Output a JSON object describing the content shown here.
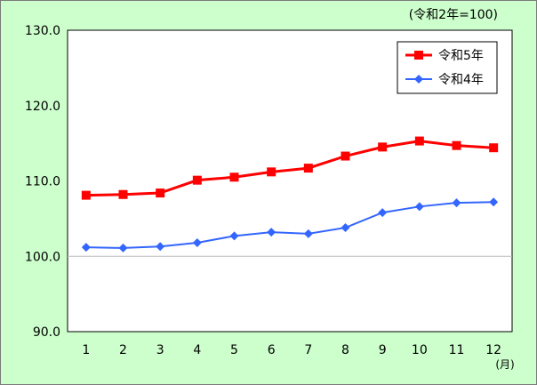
{
  "chart_data": {
    "type": "line",
    "categories": [
      "1",
      "2",
      "3",
      "4",
      "5",
      "6",
      "7",
      "8",
      "9",
      "10",
      "11",
      "12"
    ],
    "series": [
      {
        "name": "令和5年",
        "color": "#FF0000",
        "marker": "square",
        "values": [
          108.1,
          108.2,
          108.4,
          110.1,
          110.5,
          111.2,
          111.7,
          113.3,
          114.5,
          115.3,
          114.7,
          114.4
        ]
      },
      {
        "name": "令和4年",
        "color": "#3366FF",
        "marker": "diamond",
        "values": [
          101.2,
          101.1,
          101.3,
          101.8,
          102.7,
          103.2,
          103.0,
          103.8,
          105.8,
          106.6,
          107.1,
          107.2
        ]
      }
    ],
    "ylim": [
      90,
      130
    ],
    "ytick_labels": [
      "90.0",
      "100.0",
      "110.0",
      "120.0",
      "130.0"
    ],
    "xunit_label": "(月)",
    "base_note": "(令和2年=100)",
    "legend_position": "top-right",
    "reference_line": 100
  }
}
